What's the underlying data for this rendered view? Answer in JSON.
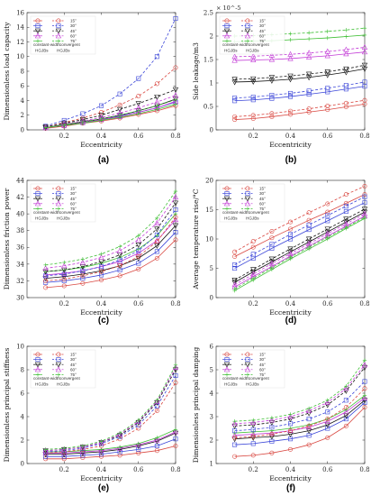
{
  "legend": {
    "angles": [
      "15°",
      "30°",
      "45°",
      "60°",
      "75°"
    ],
    "groups": [
      "constant-width",
      "convergent"
    ],
    "col_labels": [
      "HGJBs",
      "HGJBs"
    ]
  },
  "colors": {
    "15°": "#d94841",
    "30°": "#3a45d8",
    "45°": "#111111",
    "60°": "#c23ad6",
    "75°": "#3fbf35"
  },
  "chart_data": [
    {
      "type": "line",
      "caption": "(a)",
      "xlabel": "Eccentricity",
      "ylabel": "Dimensionless load capacity",
      "xlim": [
        0,
        0.8
      ],
      "ylim": [
        0,
        16
      ],
      "xticks": [
        0.2,
        0.4,
        0.6,
        0.8
      ],
      "yticks": [
        0,
        2,
        4,
        6,
        8,
        10,
        12,
        14,
        16
      ],
      "x": [
        0.1,
        0.2,
        0.3,
        0.4,
        0.5,
        0.6,
        0.7,
        0.8
      ],
      "series": [
        {
          "name": "15°",
          "group": "constant-width",
          "values": [
            0.2,
            0.5,
            0.9,
            1.2,
            1.6,
            2.1,
            2.6,
            3.3
          ]
        },
        {
          "name": "30°",
          "group": "constant-width",
          "values": [
            0.3,
            0.6,
            1.0,
            1.4,
            1.9,
            2.4,
            3.0,
            3.8
          ]
        },
        {
          "name": "45°",
          "group": "constant-width",
          "values": [
            0.3,
            0.7,
            1.1,
            1.5,
            2.0,
            2.6,
            3.3,
            4.2
          ]
        },
        {
          "name": "60°",
          "group": "constant-width",
          "values": [
            0.3,
            0.6,
            1.0,
            1.4,
            1.8,
            2.4,
            3.0,
            3.9
          ]
        },
        {
          "name": "75°",
          "group": "constant-width",
          "values": [
            0.3,
            0.6,
            0.9,
            1.3,
            1.7,
            2.2,
            2.8,
            3.5
          ]
        },
        {
          "name": "15°",
          "group": "convergent",
          "values": [
            0.4,
            1.0,
            1.6,
            2.4,
            3.4,
            4.6,
            6.3,
            8.5
          ]
        },
        {
          "name": "30°",
          "group": "convergent",
          "values": [
            0.5,
            1.3,
            2.2,
            3.3,
            4.9,
            7.0,
            10.0,
            15.2
          ]
        },
        {
          "name": "45°",
          "group": "convergent",
          "values": [
            0.4,
            0.9,
            1.4,
            2.0,
            2.8,
            3.6,
            4.5,
            5.5
          ]
        },
        {
          "name": "60°",
          "group": "convergent",
          "values": [
            0.3,
            0.8,
            1.2,
            1.7,
            2.3,
            3.0,
            3.8,
            4.7
          ]
        },
        {
          "name": "75°",
          "group": "convergent",
          "values": [
            0.3,
            0.7,
            1.1,
            1.5,
            2.0,
            2.6,
            3.3,
            4.1
          ]
        }
      ]
    },
    {
      "type": "line",
      "caption": "(b)",
      "xlabel": "Eccentricity",
      "ylabel": "Side leakage/m3",
      "sci_label": "× 10^-5",
      "xlim": [
        0,
        0.8
      ],
      "ylim": [
        0,
        2.5
      ],
      "xticks": [
        0.2,
        0.4,
        0.6,
        0.8
      ],
      "yticks": [
        0,
        0.5,
        1,
        1.5,
        2,
        2.5
      ],
      "x": [
        0.1,
        0.2,
        0.3,
        0.4,
        0.5,
        0.6,
        0.7,
        0.8
      ],
      "series": [
        {
          "name": "15°",
          "group": "constant-width",
          "values": [
            0.22,
            0.24,
            0.28,
            0.33,
            0.38,
            0.43,
            0.49,
            0.55
          ]
        },
        {
          "name": "30°",
          "group": "constant-width",
          "values": [
            0.62,
            0.64,
            0.67,
            0.71,
            0.76,
            0.81,
            0.87,
            0.93
          ]
        },
        {
          "name": "45°",
          "group": "constant-width",
          "values": [
            1.02,
            1.03,
            1.05,
            1.08,
            1.12,
            1.17,
            1.23,
            1.3
          ]
        },
        {
          "name": "60°",
          "group": "constant-width",
          "values": [
            1.48,
            1.49,
            1.5,
            1.52,
            1.55,
            1.58,
            1.62,
            1.66
          ]
        },
        {
          "name": "75°",
          "group": "constant-width",
          "values": [
            1.88,
            1.89,
            1.9,
            1.92,
            1.94,
            1.96,
            1.99,
            2.02
          ]
        },
        {
          "name": "15°",
          "group": "convergent",
          "values": [
            0.28,
            0.31,
            0.35,
            0.4,
            0.45,
            0.51,
            0.57,
            0.63
          ]
        },
        {
          "name": "30°",
          "group": "convergent",
          "values": [
            0.68,
            0.7,
            0.74,
            0.78,
            0.83,
            0.89,
            0.95,
            1.02
          ]
        },
        {
          "name": "45°",
          "group": "convergent",
          "values": [
            1.08,
            1.09,
            1.12,
            1.15,
            1.19,
            1.24,
            1.3,
            1.38
          ]
        },
        {
          "name": "60°",
          "group": "convergent",
          "values": [
            1.56,
            1.57,
            1.59,
            1.61,
            1.64,
            1.67,
            1.71,
            1.76
          ]
        },
        {
          "name": "75°",
          "group": "convergent",
          "values": [
            2.0,
            2.01,
            2.03,
            2.05,
            2.07,
            2.1,
            2.13,
            2.17
          ]
        }
      ]
    },
    {
      "type": "line",
      "caption": "(c)",
      "xlabel": "Eccentricity",
      "ylabel": "Dimensionless friction power",
      "xlim": [
        0,
        0.8
      ],
      "ylim": [
        30,
        44
      ],
      "xticks": [
        0.2,
        0.4,
        0.6,
        0.8
      ],
      "yticks": [
        30,
        32,
        34,
        36,
        38,
        40,
        42,
        44
      ],
      "x": [
        0.1,
        0.2,
        0.3,
        0.4,
        0.5,
        0.6,
        0.7,
        0.8
      ],
      "series": [
        {
          "name": "15°",
          "group": "constant-width",
          "values": [
            31.2,
            31.4,
            31.7,
            32.1,
            32.6,
            33.4,
            34.7,
            36.9
          ]
        },
        {
          "name": "30°",
          "group": "constant-width",
          "values": [
            31.8,
            32.0,
            32.3,
            32.7,
            33.3,
            34.1,
            35.5,
            37.8
          ]
        },
        {
          "name": "45°",
          "group": "constant-width",
          "values": [
            32.3,
            32.5,
            32.8,
            33.2,
            33.8,
            34.7,
            36.2,
            38.6
          ]
        },
        {
          "name": "60°",
          "group": "constant-width",
          "values": [
            32.7,
            32.9,
            33.2,
            33.7,
            34.3,
            35.3,
            36.8,
            39.3
          ]
        },
        {
          "name": "75°",
          "group": "constant-width",
          "values": [
            33.1,
            33.3,
            33.6,
            34.1,
            34.8,
            35.8,
            37.4,
            40.0
          ]
        },
        {
          "name": "15°",
          "group": "convergent",
          "values": [
            32.0,
            32.2,
            32.6,
            33.1,
            33.8,
            34.9,
            36.7,
            39.6
          ]
        },
        {
          "name": "30°",
          "group": "convergent",
          "values": [
            32.6,
            32.8,
            33.2,
            33.7,
            34.5,
            35.6,
            37.5,
            40.5
          ]
        },
        {
          "name": "45°",
          "group": "convergent",
          "values": [
            33.1,
            33.3,
            33.7,
            34.3,
            35.1,
            36.3,
            38.2,
            41.3
          ]
        },
        {
          "name": "60°",
          "group": "convergent",
          "values": [
            33.5,
            33.8,
            34.2,
            34.8,
            35.6,
            36.9,
            38.9,
            42.0
          ]
        },
        {
          "name": "75°",
          "group": "convergent",
          "values": [
            33.9,
            34.2,
            34.6,
            35.2,
            36.1,
            37.4,
            39.5,
            42.7
          ]
        }
      ]
    },
    {
      "type": "line",
      "caption": "(d)",
      "xlabel": "Eccentricity",
      "ylabel": "Average temperature rise/°C",
      "xlim": [
        0,
        0.8
      ],
      "ylim": [
        0,
        20
      ],
      "xticks": [
        0.2,
        0.4,
        0.6,
        0.8
      ],
      "yticks": [
        0,
        5,
        10,
        15,
        20
      ],
      "x": [
        0.1,
        0.2,
        0.3,
        0.4,
        0.5,
        0.6,
        0.7,
        0.8
      ],
      "series": [
        {
          "name": "15°",
          "group": "constant-width",
          "values": [
            7.0,
            8.6,
            10.2,
            11.7,
            13.2,
            14.6,
            16.1,
            17.6
          ]
        },
        {
          "name": "30°",
          "group": "constant-width",
          "values": [
            5.0,
            6.7,
            8.4,
            10.0,
            11.6,
            13.1,
            14.7,
            16.2
          ]
        },
        {
          "name": "45°",
          "group": "constant-width",
          "values": [
            2.6,
            4.4,
            6.1,
            7.8,
            9.5,
            11.2,
            12.9,
            14.6
          ]
        },
        {
          "name": "60°",
          "group": "constant-width",
          "values": [
            1.8,
            3.6,
            5.3,
            7.1,
            8.8,
            10.5,
            12.2,
            13.9
          ]
        },
        {
          "name": "75°",
          "group": "constant-width",
          "values": [
            1.2,
            3.0,
            4.8,
            6.6,
            8.3,
            10.0,
            11.8,
            13.5
          ]
        },
        {
          "name": "15°",
          "group": "convergent",
          "values": [
            7.8,
            9.6,
            11.3,
            12.9,
            14.5,
            16.0,
            17.6,
            19.0
          ]
        },
        {
          "name": "30°",
          "group": "convergent",
          "values": [
            5.6,
            7.4,
            9.1,
            10.8,
            12.4,
            14.0,
            15.6,
            17.2
          ]
        },
        {
          "name": "45°",
          "group": "convergent",
          "values": [
            3.0,
            4.8,
            6.6,
            8.3,
            10.0,
            11.7,
            13.4,
            15.1
          ]
        },
        {
          "name": "60°",
          "group": "convergent",
          "values": [
            2.2,
            4.0,
            5.8,
            7.5,
            9.2,
            10.9,
            12.6,
            14.3
          ]
        },
        {
          "name": "75°",
          "group": "convergent",
          "values": [
            1.5,
            3.3,
            5.1,
            6.9,
            8.6,
            10.3,
            12.0,
            13.7
          ]
        }
      ]
    },
    {
      "type": "line",
      "caption": "(e)",
      "xlabel": "Eccentricity",
      "ylabel": "Dimensionless principal stiffness",
      "xlim": [
        0,
        0.8
      ],
      "ylim": [
        0,
        10
      ],
      "xticks": [
        0.2,
        0.4,
        0.6,
        0.8
      ],
      "yticks": [
        0,
        2,
        4,
        6,
        8,
        10
      ],
      "x": [
        0.1,
        0.2,
        0.3,
        0.4,
        0.5,
        0.6,
        0.7,
        0.8
      ],
      "series": [
        {
          "name": "15°",
          "group": "constant-width",
          "values": [
            0.4,
            0.4,
            0.5,
            0.6,
            0.7,
            0.9,
            1.1,
            1.5
          ]
        },
        {
          "name": "30°",
          "group": "constant-width",
          "values": [
            0.6,
            0.6,
            0.7,
            0.8,
            1.0,
            1.2,
            1.5,
            2.1
          ]
        },
        {
          "name": "45°",
          "group": "constant-width",
          "values": [
            0.8,
            0.8,
            0.9,
            1.0,
            1.2,
            1.5,
            1.9,
            2.6
          ]
        },
        {
          "name": "60°",
          "group": "constant-width",
          "values": [
            0.9,
            0.9,
            1.0,
            1.1,
            1.3,
            1.6,
            2.0,
            2.7
          ]
        },
        {
          "name": "75°",
          "group": "constant-width",
          "values": [
            1.0,
            1.0,
            1.1,
            1.2,
            1.4,
            1.7,
            2.2,
            2.9
          ]
        },
        {
          "name": "15°",
          "group": "convergent",
          "values": [
            0.9,
            1.0,
            1.2,
            1.5,
            2.1,
            3.0,
            4.5,
            6.9
          ]
        },
        {
          "name": "30°",
          "group": "convergent",
          "values": [
            1.0,
            1.1,
            1.3,
            1.7,
            2.3,
            3.3,
            4.9,
            7.5
          ]
        },
        {
          "name": "45°",
          "group": "convergent",
          "values": [
            1.1,
            1.2,
            1.4,
            1.8,
            2.4,
            3.5,
            5.2,
            8.0
          ]
        },
        {
          "name": "60°",
          "group": "convergent",
          "values": [
            1.1,
            1.2,
            1.4,
            1.8,
            2.5,
            3.6,
            5.3,
            8.2
          ]
        },
        {
          "name": "75°",
          "group": "convergent",
          "values": [
            1.2,
            1.3,
            1.5,
            1.9,
            2.6,
            3.7,
            5.4,
            8.4
          ]
        }
      ]
    },
    {
      "type": "line",
      "caption": "(f)",
      "xlabel": "Eccentricity",
      "ylabel": "Dimensionless principal damping",
      "xlim": [
        0,
        0.8
      ],
      "ylim": [
        1,
        6
      ],
      "xticks": [
        0.2,
        0.4,
        0.6,
        0.8
      ],
      "yticks": [
        1,
        2,
        3,
        4,
        5,
        6
      ],
      "x": [
        0.1,
        0.2,
        0.3,
        0.4,
        0.5,
        0.6,
        0.7,
        0.8
      ],
      "series": [
        {
          "name": "15°",
          "group": "constant-width",
          "values": [
            1.3,
            1.35,
            1.45,
            1.6,
            1.8,
            2.1,
            2.6,
            3.4
          ]
        },
        {
          "name": "30°",
          "group": "constant-width",
          "values": [
            1.8,
            1.85,
            1.95,
            2.05,
            2.2,
            2.5,
            2.9,
            3.6
          ]
        },
        {
          "name": "45°",
          "group": "constant-width",
          "values": [
            2.05,
            2.1,
            2.15,
            2.25,
            2.4,
            2.65,
            3.05,
            3.7
          ]
        },
        {
          "name": "60°",
          "group": "constant-width",
          "values": [
            2.2,
            2.25,
            2.3,
            2.4,
            2.55,
            2.8,
            3.2,
            3.8
          ]
        },
        {
          "name": "75°",
          "group": "constant-width",
          "values": [
            2.3,
            2.35,
            2.4,
            2.5,
            2.65,
            2.9,
            3.3,
            3.9
          ]
        },
        {
          "name": "15°",
          "group": "convergent",
          "values": [
            2.1,
            2.15,
            2.25,
            2.4,
            2.6,
            2.9,
            3.4,
            4.2
          ]
        },
        {
          "name": "30°",
          "group": "convergent",
          "values": [
            2.4,
            2.45,
            2.55,
            2.7,
            2.9,
            3.2,
            3.7,
            4.5
          ]
        },
        {
          "name": "45°",
          "group": "convergent",
          "values": [
            2.6,
            2.65,
            2.75,
            2.9,
            3.15,
            3.5,
            4.1,
            5.1
          ]
        },
        {
          "name": "60°",
          "group": "convergent",
          "values": [
            2.7,
            2.75,
            2.85,
            3.0,
            3.25,
            3.6,
            4.2,
            5.2
          ]
        },
        {
          "name": "75°",
          "group": "convergent",
          "values": [
            2.8,
            2.85,
            2.95,
            3.1,
            3.35,
            3.7,
            4.3,
            5.4
          ]
        }
      ]
    }
  ]
}
